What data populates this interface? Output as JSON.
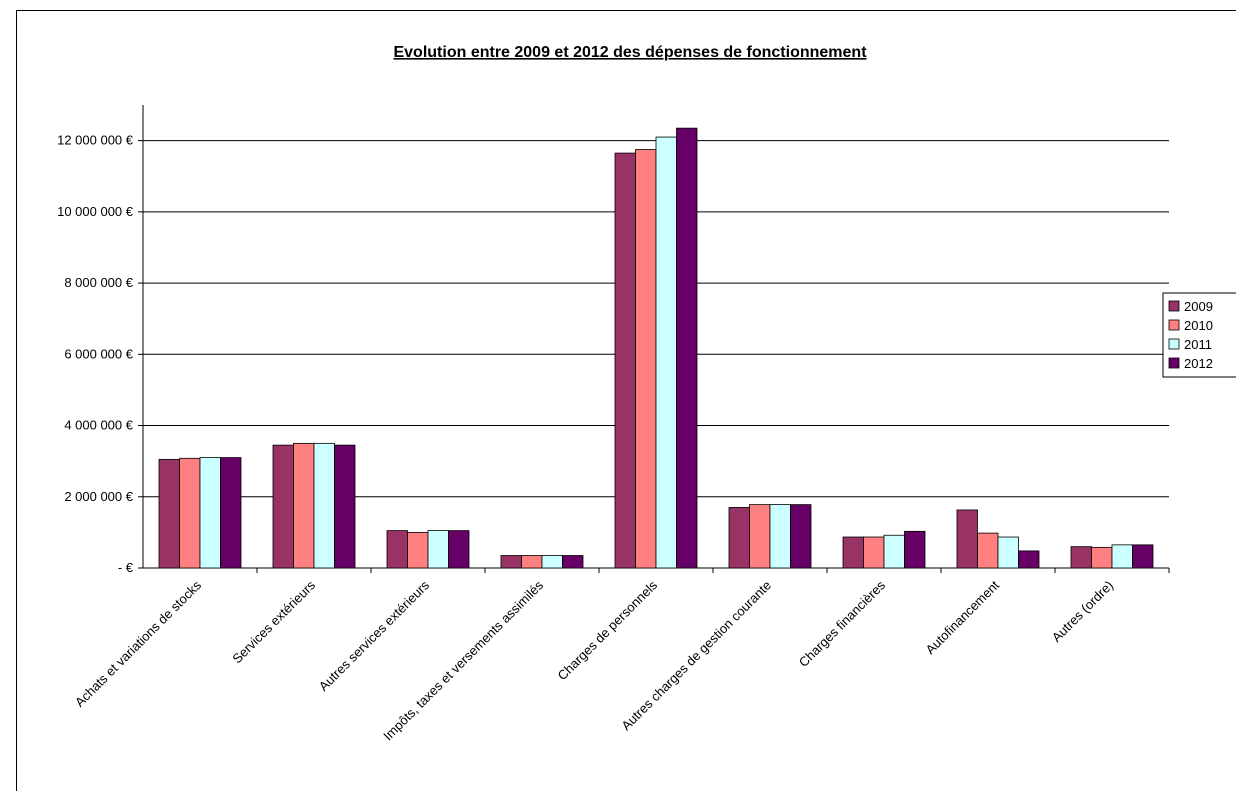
{
  "chart_data": {
    "type": "bar",
    "title": "Evolution entre 2009 et 2012 des dépenses de fonctionnement",
    "xlabel": "",
    "ylabel": "",
    "ylim": [
      0,
      13000000
    ],
    "yticks": [
      0,
      2000000,
      4000000,
      6000000,
      8000000,
      10000000,
      12000000
    ],
    "ytick_labels": [
      "-       €",
      "2 000 000 €",
      "4 000 000 €",
      "6 000 000 €",
      "8 000 000 €",
      "10 000 000 €",
      "12 000 000 €"
    ],
    "grid": true,
    "legend_position": "right",
    "categories": [
      "Achats et variations de stocks",
      "Services extérieurs",
      "Autres services extérieurs",
      "Impôts, taxes et versements assimilés",
      "Charges de personnels",
      "Autres charges de gestion courante",
      "Charges financières",
      "Autofinancement",
      "Autres (ordre)"
    ],
    "series": [
      {
        "name": "2009",
        "color": "#993366",
        "values": [
          3050000,
          3450000,
          1050000,
          350000,
          11650000,
          1700000,
          870000,
          1630000,
          600000
        ]
      },
      {
        "name": "2010",
        "color": "#FF8080",
        "values": [
          3080000,
          3500000,
          1000000,
          350000,
          11750000,
          1780000,
          870000,
          980000,
          580000
        ]
      },
      {
        "name": "2011",
        "color": "#CCFFFF",
        "values": [
          3100000,
          3500000,
          1050000,
          350000,
          12100000,
          1780000,
          920000,
          870000,
          650000
        ]
      },
      {
        "name": "2012",
        "color": "#660066",
        "values": [
          3100000,
          3450000,
          1050000,
          350000,
          12350000,
          1780000,
          1030000,
          480000,
          650000
        ]
      }
    ]
  }
}
